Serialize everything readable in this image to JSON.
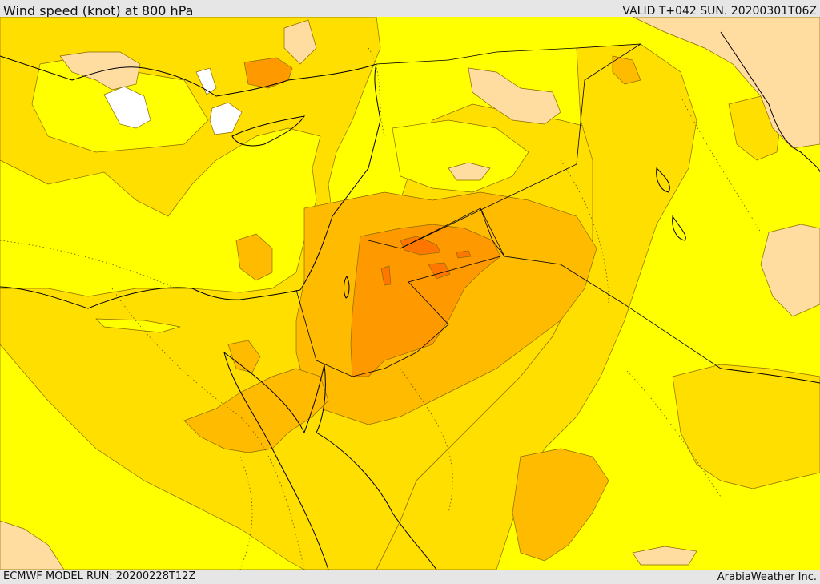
{
  "header": {
    "title": "Wind speed (knot) at 800 hPa",
    "valid": "VALID T+042 SUN. 20200301T06Z"
  },
  "footer": {
    "model_run": "ECMWF MODEL RUN: 20200228T12Z",
    "credit": "ArabiaWeather Inc."
  },
  "map": {
    "colors": {
      "lowest": "#ffffff",
      "low": "#ffdca0",
      "yellow": "#ffff00",
      "mid": "#ffdf00",
      "mid_high": "#ffbb00",
      "high": "#ff9900",
      "highest": "#ff7700",
      "coastline": "#000000",
      "contour_line": "#8a6a00"
    }
  }
}
